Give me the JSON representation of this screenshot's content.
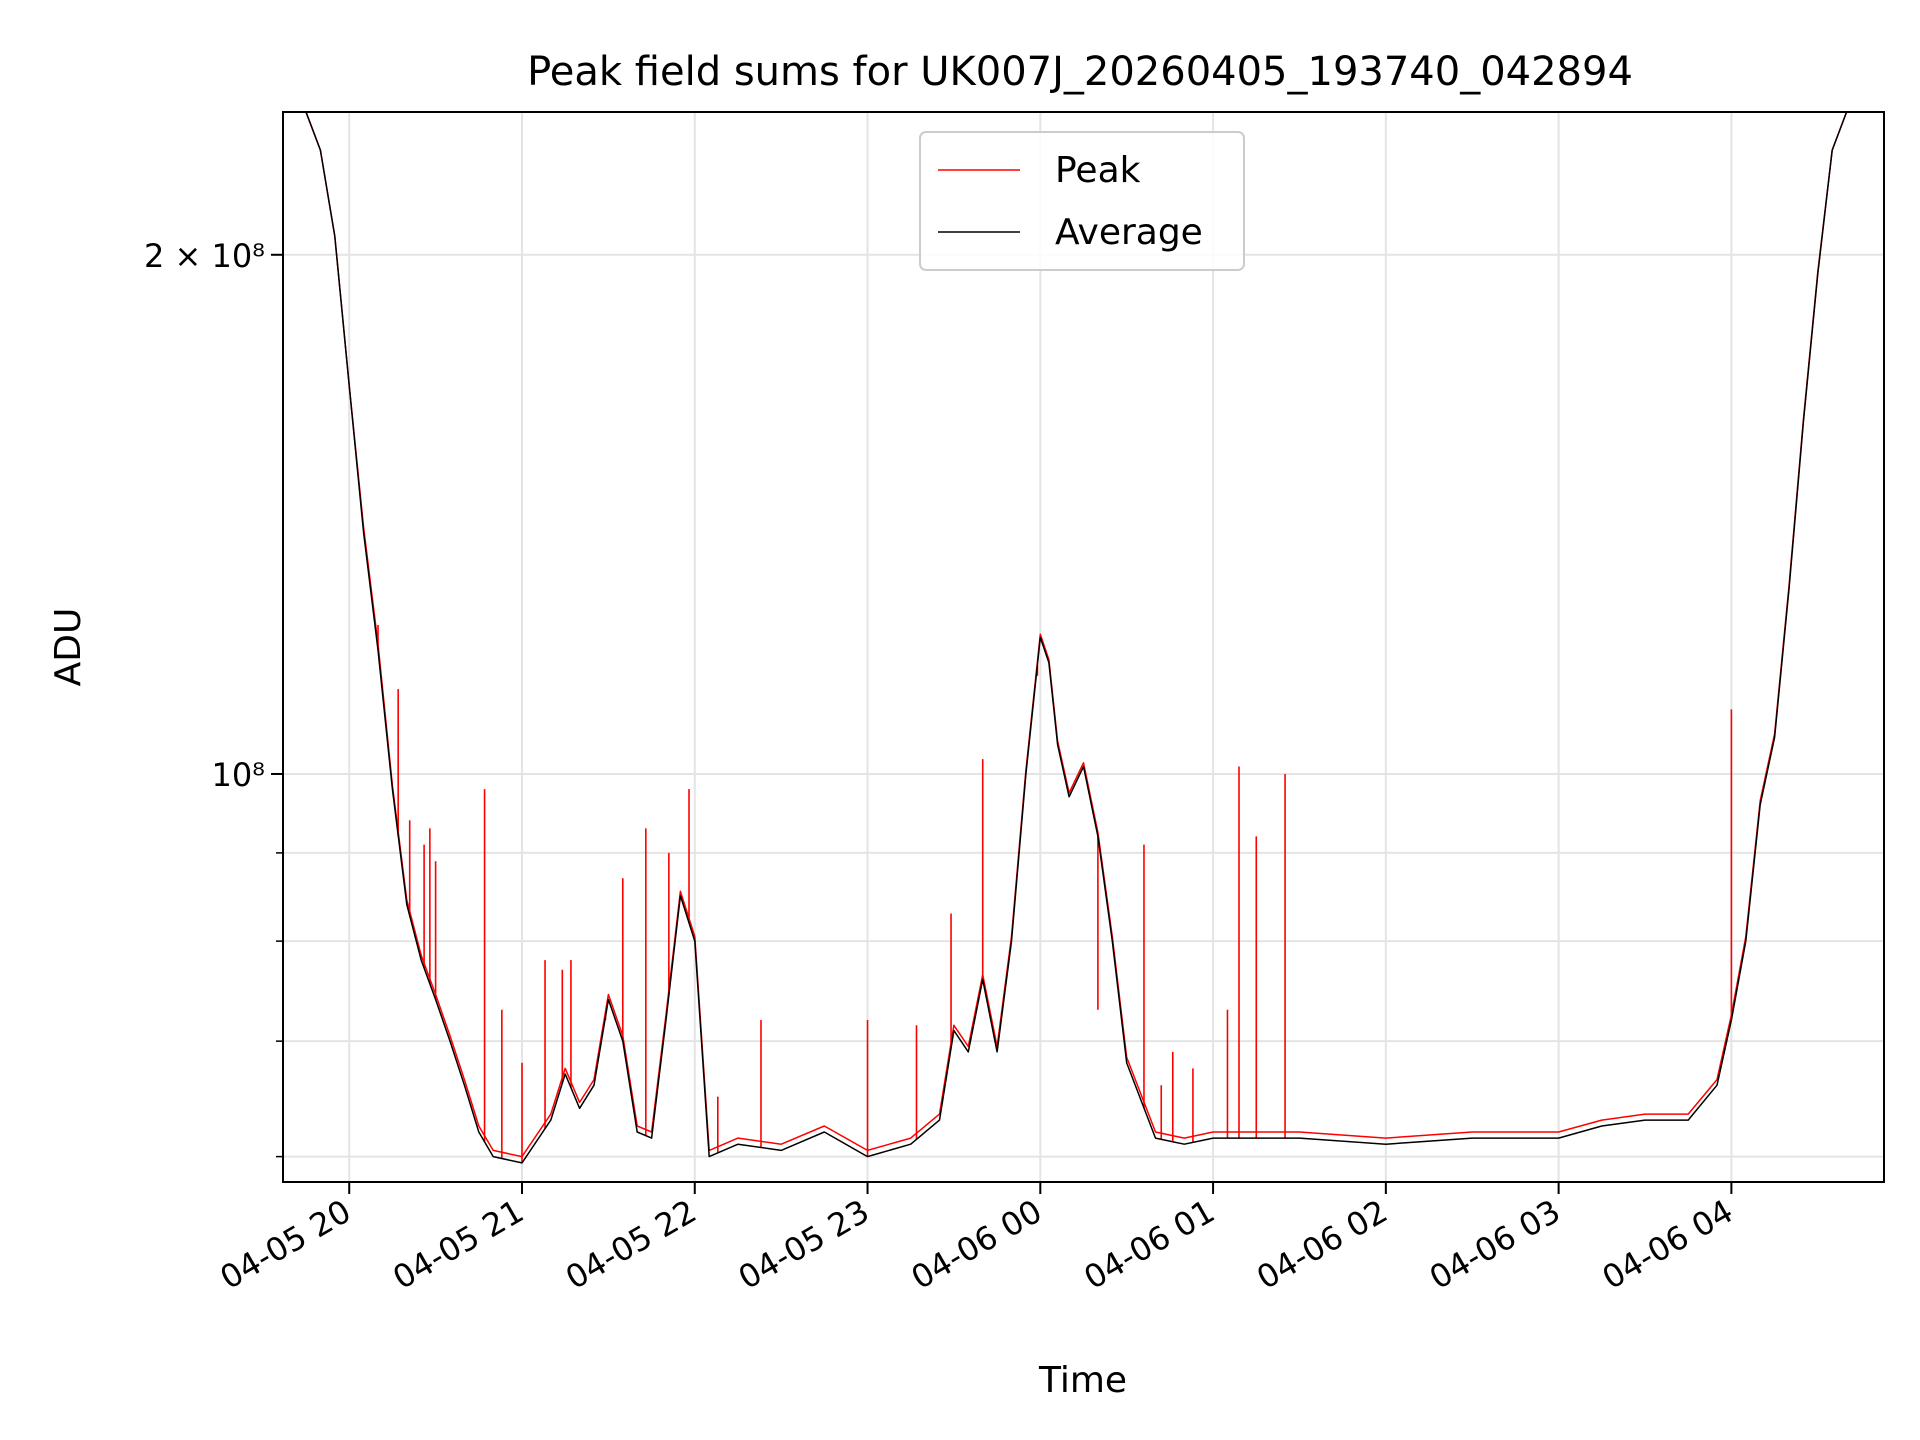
{
  "chart_data": {
    "type": "line",
    "title": "Peak field sums for UK007J_20260405_193740_042894",
    "xlabel": "Time",
    "ylabel": "ADU",
    "y_scale": "log",
    "grid": true,
    "legend_position": "top-center",
    "x_range": [
      "2026-04-05 19:37",
      "2026-04-06 04:53"
    ],
    "ylim": [
      58000000,
      242000000
    ],
    "x_ticks": [
      {
        "t": "2026-04-05 20:00",
        "label": "04-05 20"
      },
      {
        "t": "2026-04-05 21:00",
        "label": "04-05 21"
      },
      {
        "t": "2026-04-05 22:00",
        "label": "04-05 22"
      },
      {
        "t": "2026-04-05 23:00",
        "label": "04-05 23"
      },
      {
        "t": "2026-04-06 00:00",
        "label": "04-06 00"
      },
      {
        "t": "2026-04-06 01:00",
        "label": "04-06 01"
      },
      {
        "t": "2026-04-06 02:00",
        "label": "04-06 02"
      },
      {
        "t": "2026-04-06 03:00",
        "label": "04-06 03"
      },
      {
        "t": "2026-04-06 04:00",
        "label": "04-06 04"
      }
    ],
    "y_ticks": [
      {
        "value": 200000000,
        "label": "2 × 10⁸"
      },
      {
        "value": 100000000,
        "label": "10⁸"
      }
    ],
    "y_minor_ticks": [
      60000000,
      70000000,
      80000000,
      90000000
    ],
    "colors": {
      "Peak": "#ff0000",
      "Average": "#000000"
    },
    "series": [
      {
        "name": "Average",
        "x": [
          "2026-04-05 19:37",
          "2026-04-05 19:45",
          "2026-04-05 19:50",
          "2026-04-05 19:55",
          "2026-04-05 20:00",
          "2026-04-05 20:05",
          "2026-04-05 20:10",
          "2026-04-05 20:15",
          "2026-04-05 20:20",
          "2026-04-05 20:25",
          "2026-04-05 20:30",
          "2026-04-05 20:35",
          "2026-04-05 20:40",
          "2026-04-05 20:45",
          "2026-04-05 20:50",
          "2026-04-05 21:00",
          "2026-04-05 21:10",
          "2026-04-05 21:15",
          "2026-04-05 21:20",
          "2026-04-05 21:25",
          "2026-04-05 21:30",
          "2026-04-05 21:35",
          "2026-04-05 21:40",
          "2026-04-05 21:45",
          "2026-04-05 21:50",
          "2026-04-05 21:55",
          "2026-04-05 22:00",
          "2026-04-05 22:05",
          "2026-04-05 22:15",
          "2026-04-05 22:30",
          "2026-04-05 22:45",
          "2026-04-05 23:00",
          "2026-04-05 23:15",
          "2026-04-05 23:25",
          "2026-04-05 23:30",
          "2026-04-05 23:35",
          "2026-04-05 23:40",
          "2026-04-05 23:45",
          "2026-04-05 23:50",
          "2026-04-05 23:55",
          "2026-04-06 00:00",
          "2026-04-06 00:03",
          "2026-04-06 00:06",
          "2026-04-06 00:10",
          "2026-04-06 00:15",
          "2026-04-06 00:20",
          "2026-04-06 00:25",
          "2026-04-06 00:30",
          "2026-04-06 00:40",
          "2026-04-06 00:50",
          "2026-04-06 01:00",
          "2026-04-06 01:30",
          "2026-04-06 02:00",
          "2026-04-06 02:30",
          "2026-04-06 03:00",
          "2026-04-06 03:15",
          "2026-04-06 03:30",
          "2026-04-06 03:45",
          "2026-04-06 03:55",
          "2026-04-06 04:00",
          "2026-04-06 04:05",
          "2026-04-06 04:10",
          "2026-04-06 04:15",
          "2026-04-06 04:20",
          "2026-04-06 04:25",
          "2026-04-06 04:30",
          "2026-04-06 04:35",
          "2026-04-06 04:40",
          "2026-04-06 04:53"
        ],
        "values": [
          242000000,
          242000000,
          230000000,
          205000000,
          168000000,
          138000000,
          118000000,
          98000000,
          84000000,
          78000000,
          74000000,
          70000000,
          66000000,
          62000000,
          60000000,
          59500000,
          63000000,
          67000000,
          64000000,
          66000000,
          74000000,
          70000000,
          62000000,
          61500000,
          72000000,
          85000000,
          80000000,
          60000000,
          61000000,
          60500000,
          62000000,
          60000000,
          61000000,
          63000000,
          71000000,
          69000000,
          76000000,
          69000000,
          80000000,
          100000000,
          120000000,
          116000000,
          104000000,
          97000000,
          101000000,
          92000000,
          80000000,
          68000000,
          61500000,
          61000000,
          61500000,
          61500000,
          61000000,
          61500000,
          61500000,
          62500000,
          63000000,
          63000000,
          66000000,
          72000000,
          80000000,
          96000000,
          105000000,
          128000000,
          160000000,
          195000000,
          230000000,
          242000000,
          242000000
        ]
      },
      {
        "name": "Peak",
        "x": [
          "2026-04-05 19:37",
          "2026-04-05 19:45",
          "2026-04-05 19:50",
          "2026-04-05 19:55",
          "2026-04-05 20:00",
          "2026-04-05 20:05",
          "2026-04-05 20:10",
          "2026-04-05 20:15",
          "2026-04-05 20:20",
          "2026-04-05 20:25",
          "2026-04-05 20:30",
          "2026-04-05 20:35",
          "2026-04-05 20:40",
          "2026-04-05 20:45",
          "2026-04-05 20:50",
          "2026-04-05 21:00",
          "2026-04-05 21:10",
          "2026-04-05 21:15",
          "2026-04-05 21:20",
          "2026-04-05 21:25",
          "2026-04-05 21:30",
          "2026-04-05 21:35",
          "2026-04-05 21:40",
          "2026-04-05 21:45",
          "2026-04-05 21:50",
          "2026-04-05 21:55",
          "2026-04-05 22:00",
          "2026-04-05 22:05",
          "2026-04-05 22:15",
          "2026-04-05 22:30",
          "2026-04-05 22:45",
          "2026-04-05 23:00",
          "2026-04-05 23:15",
          "2026-04-05 23:25",
          "2026-04-05 23:30",
          "2026-04-05 23:35",
          "2026-04-05 23:40",
          "2026-04-05 23:45",
          "2026-04-05 23:50",
          "2026-04-05 23:55",
          "2026-04-06 00:00",
          "2026-04-06 00:03",
          "2026-04-06 00:06",
          "2026-04-06 00:10",
          "2026-04-06 00:15",
          "2026-04-06 00:20",
          "2026-04-06 00:25",
          "2026-04-06 00:30",
          "2026-04-06 00:40",
          "2026-04-06 00:50",
          "2026-04-06 01:00",
          "2026-04-06 01:30",
          "2026-04-06 02:00",
          "2026-04-06 02:30",
          "2026-04-06 03:00",
          "2026-04-06 03:15",
          "2026-04-06 03:30",
          "2026-04-06 03:45",
          "2026-04-06 03:55",
          "2026-04-06 04:00",
          "2026-04-06 04:05",
          "2026-04-06 04:10",
          "2026-04-06 04:15",
          "2026-04-06 04:20",
          "2026-04-06 04:25",
          "2026-04-06 04:30",
          "2026-04-06 04:35",
          "2026-04-06 04:40",
          "2026-04-06 04:53"
        ],
        "values": [
          242000000,
          242000000,
          230000000,
          205000000,
          168000000,
          139000000,
          119000000,
          98500000,
          84500000,
          78500000,
          74500000,
          70500000,
          66500000,
          62500000,
          60500000,
          60000000,
          63500000,
          67500000,
          64500000,
          66500000,
          74500000,
          70500000,
          62500000,
          62000000,
          72500000,
          85500000,
          80500000,
          60500000,
          61500000,
          61000000,
          62500000,
          60500000,
          61500000,
          63500000,
          71500000,
          69500000,
          76500000,
          69500000,
          80500000,
          100500000,
          120500000,
          116500000,
          104500000,
          97500000,
          101500000,
          92500000,
          80500000,
          68500000,
          62000000,
          61500000,
          62000000,
          62000000,
          61500000,
          62000000,
          62000000,
          63000000,
          63500000,
          63500000,
          66500000,
          72500000,
          80500000,
          96500000,
          105500000,
          128500000,
          160500000,
          195500000,
          230000000,
          242000000,
          242000000
        ]
      }
    ],
    "peak_spikes": [
      {
        "x": "2026-04-05 20:05",
        "value": 138000000
      },
      {
        "x": "2026-04-05 20:10",
        "value": 122000000
      },
      {
        "x": "2026-04-05 20:17",
        "value": 112000000
      },
      {
        "x": "2026-04-05 20:21",
        "value": 94000000
      },
      {
        "x": "2026-04-05 20:26",
        "value": 91000000
      },
      {
        "x": "2026-04-05 20:28",
        "value": 93000000
      },
      {
        "x": "2026-04-05 20:30",
        "value": 89000000
      },
      {
        "x": "2026-04-05 20:47",
        "value": 98000000
      },
      {
        "x": "2026-04-05 20:53",
        "value": 73000000
      },
      {
        "x": "2026-04-05 21:00",
        "value": 68000000
      },
      {
        "x": "2026-04-05 21:08",
        "value": 78000000
      },
      {
        "x": "2026-04-05 21:14",
        "value": 77000000
      },
      {
        "x": "2026-04-05 21:17",
        "value": 78000000
      },
      {
        "x": "2026-04-05 21:29",
        "value": 72000000
      },
      {
        "x": "2026-04-05 21:35",
        "value": 87000000
      },
      {
        "x": "2026-04-05 21:43",
        "value": 93000000
      },
      {
        "x": "2026-04-05 21:51",
        "value": 90000000
      },
      {
        "x": "2026-04-05 21:58",
        "value": 98000000
      },
      {
        "x": "2026-04-05 22:08",
        "value": 65000000
      },
      {
        "x": "2026-04-05 22:23",
        "value": 72000000
      },
      {
        "x": "2026-04-05 23:00",
        "value": 72000000
      },
      {
        "x": "2026-04-05 23:17",
        "value": 71500000
      },
      {
        "x": "2026-04-05 23:29",
        "value": 83000000
      },
      {
        "x": "2026-04-05 23:40",
        "value": 102000000
      },
      {
        "x": "2026-04-05 23:59",
        "value": 114000000
      },
      {
        "x": "2026-04-06 00:20",
        "value": 73000000
      },
      {
        "x": "2026-04-06 00:36",
        "value": 91000000
      },
      {
        "x": "2026-04-06 00:42",
        "value": 66000000
      },
      {
        "x": "2026-04-06 00:46",
        "value": 69000000
      },
      {
        "x": "2026-04-06 00:53",
        "value": 67500000
      },
      {
        "x": "2026-04-06 01:05",
        "value": 73000000
      },
      {
        "x": "2026-04-06 01:09",
        "value": 101000000
      },
      {
        "x": "2026-04-06 01:15",
        "value": 92000000
      },
      {
        "x": "2026-04-06 01:25",
        "value": 100000000
      },
      {
        "x": "2026-04-06 04:00",
        "value": 109000000
      }
    ]
  }
}
